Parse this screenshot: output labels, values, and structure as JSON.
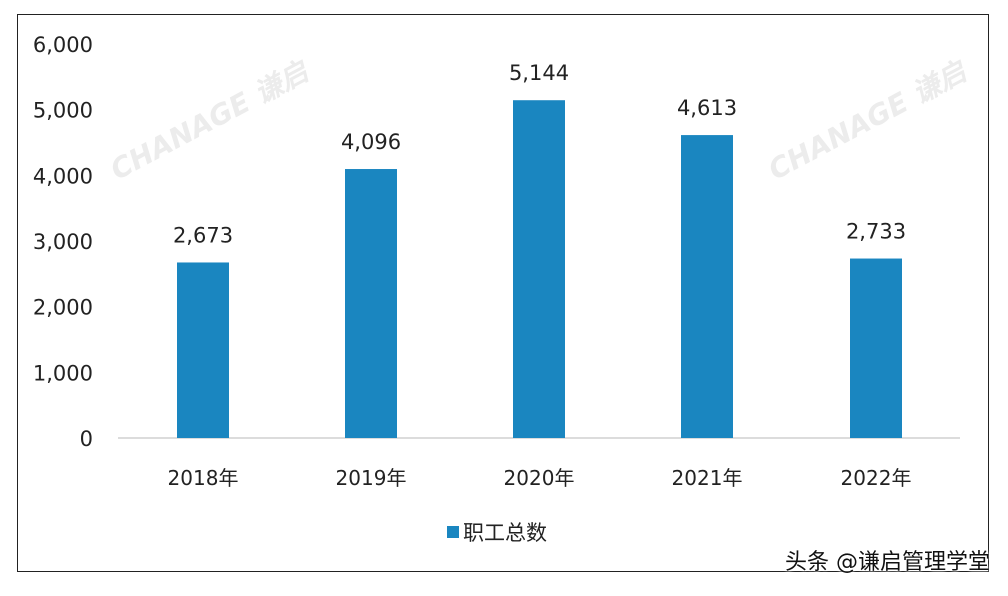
{
  "chart_data": {
    "type": "bar",
    "categories": [
      "2018年",
      "2019年",
      "2020年",
      "2021年",
      "2022年"
    ],
    "series": [
      {
        "name": "职工总数",
        "values": [
          2673,
          4096,
          5144,
          4613,
          2733
        ],
        "color": "#1a86c0"
      }
    ],
    "data_labels": [
      "2,673",
      "4,096",
      "5,144",
      "4,613",
      "2,733"
    ],
    "ylim": [
      0,
      6000
    ],
    "yticks": [
      "0",
      "1,000",
      "2,000",
      "3,000",
      "4,000",
      "5,000",
      "6,000"
    ],
    "grid": false,
    "legend": "bottom"
  },
  "watermark": "CHANAGE 谦启",
  "credit": "头条 @谦启管理学堂"
}
